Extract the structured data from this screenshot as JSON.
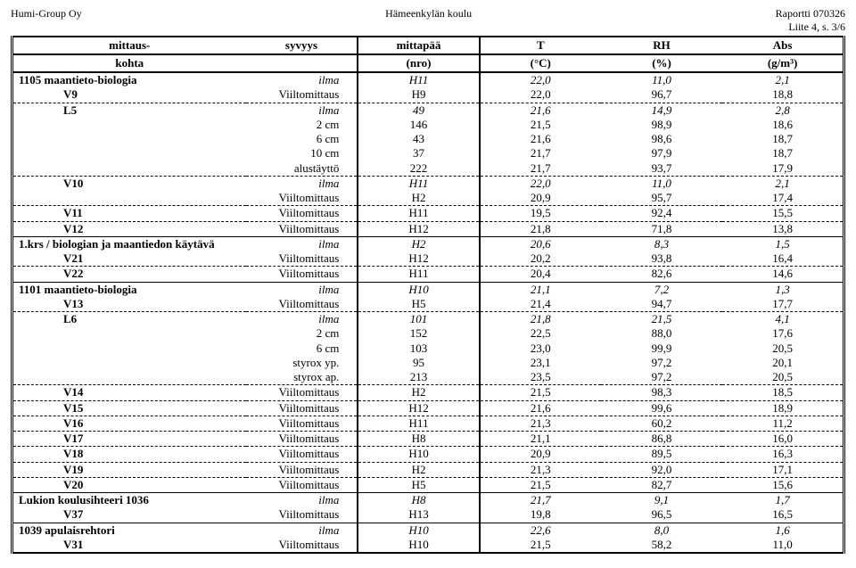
{
  "header": {
    "left": "Humi-Group Oy",
    "center": "Hämeenkylän koulu",
    "right1": "Raportti 070326",
    "right2": "Liite 4, s. 3/6"
  },
  "thead": {
    "r1": {
      "kohta": "mittaus-",
      "syvyys": "syvyys",
      "nro": "mittapää",
      "t": "T",
      "rh": "RH",
      "abs": "Abs"
    },
    "r2": {
      "kohta": "kohta",
      "syvyys": "",
      "nro": "(nro)",
      "t": "(°C)",
      "rh": "(%)",
      "abs": "(g/m³)"
    }
  },
  "rows": [
    {
      "kohta": "1105 maantieto-biologia",
      "syvyys": "ilma",
      "nro": "H11",
      "t": "22,0",
      "rh": "11,0",
      "abs": "2,1",
      "ilma": true,
      "topsolid": true
    },
    {
      "kohta": "V9",
      "sub": true,
      "syvyys": "Viiltomittaus",
      "nro": "H9",
      "t": "22,0",
      "rh": "96,7",
      "abs": "18,8",
      "sep": true
    },
    {
      "kohta": "L5",
      "sub": true,
      "syvyys": "ilma",
      "nro": "49",
      "t": "21,6",
      "rh": "14,9",
      "abs": "2,8",
      "ilma": true
    },
    {
      "kohta": "",
      "syvyys": "2 cm",
      "nro": "146",
      "t": "21,5",
      "rh": "98,9",
      "abs": "18,6"
    },
    {
      "kohta": "",
      "syvyys": "6 cm",
      "nro": "43",
      "t": "21,6",
      "rh": "98,6",
      "abs": "18,7"
    },
    {
      "kohta": "",
      "syvyys": "10 cm",
      "nro": "37",
      "t": "21,7",
      "rh": "97,9",
      "abs": "18,7"
    },
    {
      "kohta": "",
      "syvyys": "alustäyttö",
      "nro": "222",
      "t": "21,7",
      "rh": "93,7",
      "abs": "17,9",
      "sep": true
    },
    {
      "kohta": "V10",
      "sub": true,
      "syvyys": "ilma",
      "nro": "H11",
      "t": "22,0",
      "rh": "11,0",
      "abs": "2,1",
      "ilma": true
    },
    {
      "kohta": "",
      "syvyys": "Viiltomittaus",
      "nro": "H2",
      "t": "20,9",
      "rh": "95,7",
      "abs": "17,4",
      "sep": true
    },
    {
      "kohta": "V11",
      "sub": true,
      "syvyys": "Viiltomittaus",
      "nro": "H11",
      "t": "19,5",
      "rh": "92,4",
      "abs": "15,5",
      "sep": true
    },
    {
      "kohta": "V12",
      "sub": true,
      "syvyys": "Viiltomittaus",
      "nro": "H12",
      "t": "21,8",
      "rh": "71,8",
      "abs": "13,8"
    },
    {
      "kohta": "1.krs / biologian ja maantiedon käytävä",
      "syvyys": "ilma",
      "nro": "H2",
      "t": "20,6",
      "rh": "8,3",
      "abs": "1,5",
      "ilma": true,
      "topsolid": true
    },
    {
      "kohta": "V21",
      "sub": true,
      "syvyys": "Viiltomittaus",
      "nro": "H12",
      "t": "20,2",
      "rh": "93,8",
      "abs": "16,4",
      "sep": true
    },
    {
      "kohta": "V22",
      "sub": true,
      "syvyys": "Viiltomittaus",
      "nro": "H11",
      "t": "20,4",
      "rh": "82,6",
      "abs": "14,6"
    },
    {
      "kohta": "1101 maantieto-biologia",
      "syvyys": "ilma",
      "nro": "H10",
      "t": "21,1",
      "rh": "7,2",
      "abs": "1,3",
      "ilma": true,
      "topsolid": true
    },
    {
      "kohta": "V13",
      "sub": true,
      "syvyys": "Viiltomittaus",
      "nro": "H5",
      "t": "21,4",
      "rh": "94,7",
      "abs": "17,7",
      "sep": true
    },
    {
      "kohta": "L6",
      "sub": true,
      "syvyys": "ilma",
      "nro": "101",
      "t": "21,8",
      "rh": "21,5",
      "abs": "4,1",
      "ilma": true
    },
    {
      "kohta": "",
      "syvyys": "2 cm",
      "nro": "152",
      "t": "22,5",
      "rh": "88,0",
      "abs": "17,6"
    },
    {
      "kohta": "",
      "syvyys": "6 cm",
      "nro": "103",
      "t": "23,0",
      "rh": "99,9",
      "abs": "20,5"
    },
    {
      "kohta": "",
      "syvyys": "styrox yp.",
      "nro": "95",
      "t": "23,1",
      "rh": "97,2",
      "abs": "20,1"
    },
    {
      "kohta": "",
      "syvyys": "styrox ap.",
      "nro": "213",
      "t": "23,5",
      "rh": "97,2",
      "abs": "20,5",
      "sep": true
    },
    {
      "kohta": "V14",
      "sub": true,
      "syvyys": "Viiltomittaus",
      "nro": "H2",
      "t": "21,5",
      "rh": "98,3",
      "abs": "18,5",
      "sep": true
    },
    {
      "kohta": "V15",
      "sub": true,
      "syvyys": "Viiltomittaus",
      "nro": "H12",
      "t": "21,6",
      "rh": "99,6",
      "abs": "18,9",
      "sep": true
    },
    {
      "kohta": "V16",
      "sub": true,
      "syvyys": "Viiltomittaus",
      "nro": "H11",
      "t": "21,3",
      "rh": "60,2",
      "abs": "11,2",
      "sep": true
    },
    {
      "kohta": "V17",
      "sub": true,
      "syvyys": "Viiltomittaus",
      "nro": "H8",
      "t": "21,1",
      "rh": "86,8",
      "abs": "16,0",
      "sep": true
    },
    {
      "kohta": "V18",
      "sub": true,
      "syvyys": "Viiltomittaus",
      "nro": "H10",
      "t": "20,9",
      "rh": "89,5",
      "abs": "16,3",
      "sep": true
    },
    {
      "kohta": "V19",
      "sub": true,
      "syvyys": "Viiltomittaus",
      "nro": "H2",
      "t": "21,3",
      "rh": "92,0",
      "abs": "17,1",
      "sep": true
    },
    {
      "kohta": "V20",
      "sub": true,
      "syvyys": "Viiltomittaus",
      "nro": "H5",
      "t": "21,5",
      "rh": "82,7",
      "abs": "15,6"
    },
    {
      "kohta": "Lukion koulusihteeri 1036",
      "syvyys": "ilma",
      "nro": "H8",
      "t": "21,7",
      "rh": "9,1",
      "abs": "1,7",
      "ilma": true,
      "topsolid": true
    },
    {
      "kohta": "V37",
      "sub": true,
      "syvyys": "Viiltomittaus",
      "nro": "H13",
      "t": "19,8",
      "rh": "96,5",
      "abs": "16,5"
    },
    {
      "kohta": "1039 apulaisrehtori",
      "syvyys": "ilma",
      "nro": "H10",
      "t": "22,6",
      "rh": "8,0",
      "abs": "1,6",
      "ilma": true,
      "topsolid": true
    },
    {
      "kohta": "V31",
      "sub": true,
      "syvyys": "Viiltomittaus",
      "nro": "H10",
      "t": "21,5",
      "rh": "58,2",
      "abs": "11,0",
      "last": true
    }
  ]
}
